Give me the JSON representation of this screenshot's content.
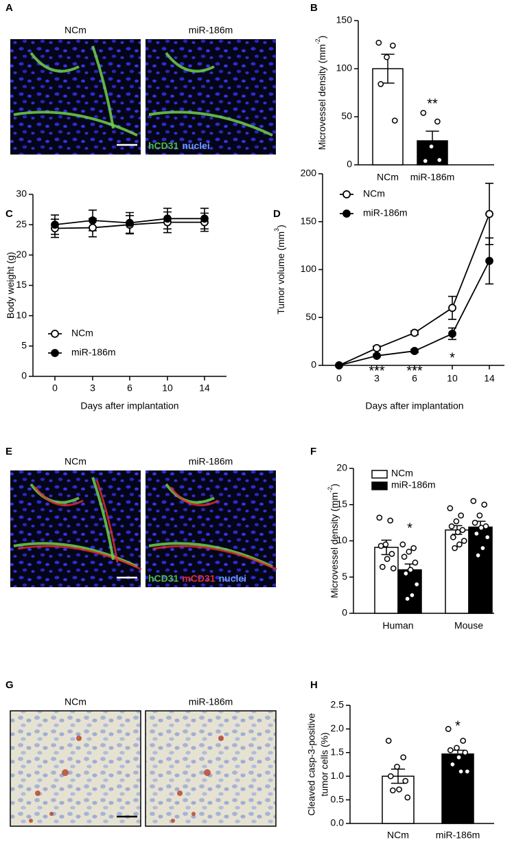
{
  "panels": {
    "letters": [
      "A",
      "B",
      "C",
      "D",
      "E",
      "F",
      "G",
      "H"
    ],
    "images": [
      {
        "labels": [
          "NCm",
          "miR-186m"
        ],
        "stain": [
          {
            "text": "hCD31",
            "color": "#4fbf3a"
          },
          {
            "text": "nuclei",
            "color": "#6b9cf5"
          }
        ]
      },
      {
        "labels": [
          "NCm",
          "miR-186m"
        ],
        "stain": [
          {
            "text": "hCD31",
            "color": "#4fbf3a"
          },
          {
            "text": "mCD31",
            "color": "#e0302a"
          },
          {
            "text": "nuclei",
            "color": "#6b9cf5"
          }
        ]
      },
      {
        "labels": [
          "NCm",
          "miR-186m"
        ]
      }
    ]
  },
  "chart_data": [
    {
      "type": "bar",
      "ylabel": "Microvessel density (mm",
      "ylabel_sup": "-2",
      "ylabel_end": ")",
      "categories": [
        "NCm",
        "miR-186m"
      ],
      "values": [
        100,
        25
      ],
      "errors": [
        15,
        10
      ],
      "points": [
        [
          127,
          124,
          112,
          84,
          46
        ],
        [
          54,
          45,
          19,
          4,
          5
        ]
      ],
      "colors": [
        "#ffffff",
        "#000000"
      ],
      "ylim": [
        0,
        150
      ],
      "yticks": [
        0,
        50,
        100,
        150
      ],
      "annotations": [
        "**"
      ]
    },
    {
      "type": "line",
      "ylabel": "Body weight (g)",
      "xlabel": "Days after implantation",
      "categories": [
        "0",
        "3",
        "6",
        "10",
        "14"
      ],
      "ylim": [
        0,
        30
      ],
      "yticks": [
        0,
        5,
        10,
        15,
        20,
        25,
        30
      ],
      "legend": "lower left",
      "series": [
        {
          "name": "NCm",
          "color": "#ffffff",
          "values": [
            24.4,
            24.5,
            25,
            25.4,
            25.4
          ],
          "errors": [
            1.5,
            1.5,
            1.5,
            1.7,
            1.5
          ]
        },
        {
          "name": "miR-186m",
          "color": "#000000",
          "values": [
            25,
            25.7,
            25.3,
            26,
            26
          ],
          "errors": [
            1.6,
            1.7,
            1.7,
            1.7,
            1.7
          ]
        }
      ]
    },
    {
      "type": "line",
      "ylabel": "Tumor volume (mm",
      "ylabel_sup": "3",
      "ylabel_end": ")",
      "xlabel": "Days after implantation",
      "categories": [
        "0",
        "3",
        "6",
        "10",
        "14"
      ],
      "ylim": [
        0,
        200
      ],
      "yticks": [
        0,
        50,
        100,
        150,
        200
      ],
      "legend": "upper left",
      "series": [
        {
          "name": "NCm",
          "color": "#ffffff",
          "values": [
            0,
            18,
            34,
            60,
            158
          ],
          "errors": [
            0,
            2,
            2,
            12,
            32
          ]
        },
        {
          "name": "miR-186m",
          "color": "#000000",
          "values": [
            0,
            10,
            15,
            33,
            109
          ],
          "errors": [
            0,
            1,
            1.5,
            6,
            24
          ]
        }
      ],
      "annotations": [
        "***",
        "***",
        "*"
      ]
    },
    {
      "type": "bar",
      "ylabel": "Microvessel density (mm",
      "ylabel_sup": "-2",
      "ylabel_end": ")",
      "categories": [
        "Human",
        "Mouse"
      ],
      "ylim": [
        0,
        20
      ],
      "yticks": [
        0,
        5,
        10,
        15,
        20
      ],
      "legend": "upper left",
      "series": [
        {
          "name": "NCm",
          "color": "#ffffff",
          "values": [
            9.1,
            11.5
          ],
          "errors": [
            1.0,
            0.6
          ],
          "points": [
            [
              13.2,
              12.8,
              9.5,
              9.3,
              8.2,
              7.5,
              6.4,
              6.2
            ],
            [
              14.5,
              13.5,
              12.7,
              12,
              11.5,
              11.2,
              10.5,
              10,
              9.5,
              9
            ]
          ]
        },
        {
          "name": "miR-186m",
          "color": "#000000",
          "values": [
            6.0,
            11.9
          ],
          "errors": [
            0.8,
            0.8
          ],
          "points": [
            [
              9.5,
              9,
              8.5,
              7.8,
              7,
              6,
              5.5,
              4,
              2.5,
              2
            ],
            [
              15.5,
              15,
              13.5,
              12.5,
              12,
              11.8,
              11,
              10.5,
              9,
              8
            ]
          ]
        }
      ],
      "annotations": [
        "*"
      ]
    },
    {
      "type": "bar",
      "ylabel": [
        "Cleaved casp-3-positive",
        "tumor cells (%)"
      ],
      "categories": [
        "NCm",
        "miR-186m"
      ],
      "values": [
        1.0,
        1.47
      ],
      "errors": [
        0.15,
        0.08
      ],
      "points": [
        [
          1.75,
          1.4,
          1.2,
          1.0,
          0.9,
          0.72,
          0.7,
          0.55
        ],
        [
          2.0,
          1.75,
          1.6,
          1.55,
          1.5,
          1.4,
          1.25,
          1.1,
          1.1
        ]
      ],
      "colors": [
        "#ffffff",
        "#000000"
      ],
      "ylim": [
        0,
        2.5
      ],
      "yticks": [
        {
          "value": 0,
          "label": "0.0"
        },
        0.5,
        {
          "value": 1,
          "label": "1.0"
        },
        1.5,
        {
          "value": 2,
          "label": "2.0"
        },
        2.5
      ],
      "annotations": [
        "*"
      ]
    }
  ]
}
